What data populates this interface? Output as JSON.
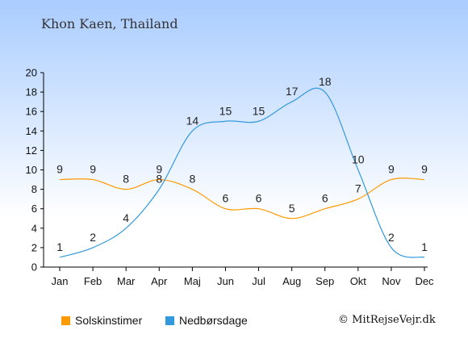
{
  "page": {
    "title": "Khon Kaen, Thailand",
    "copyright": "© MitRejseVejr.dk"
  },
  "chart_data": {
    "type": "line",
    "categories": [
      "Jan",
      "Feb",
      "Mar",
      "Apr",
      "Maj",
      "Jun",
      "Jul",
      "Aug",
      "Sep",
      "Okt",
      "Nov",
      "Dec"
    ],
    "series": [
      {
        "name": "Solskinstimer",
        "color": "#ff9900",
        "values": [
          9,
          9,
          8,
          9,
          8,
          6,
          6,
          5,
          6,
          7,
          9,
          9
        ]
      },
      {
        "name": "Nedbørsdage",
        "color": "#3399dd",
        "values": [
          1,
          2,
          4,
          8,
          14,
          15,
          15,
          17,
          18,
          10,
          2,
          1
        ]
      }
    ],
    "yticks": [
      0,
      2,
      4,
      6,
      8,
      10,
      12,
      14,
      16,
      18,
      20
    ],
    "ylim": [
      0,
      20
    ],
    "xlabel": "",
    "ylabel": "",
    "legend_position": "bottom-left",
    "grid": false
  }
}
